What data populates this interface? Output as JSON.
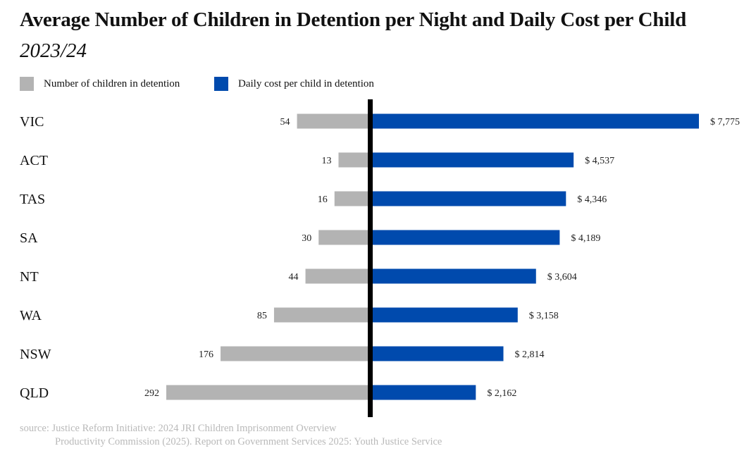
{
  "chart_data": {
    "type": "bar",
    "orientation": "horizontal-diverging",
    "title": "Average Number of Children in Detention per Night and Daily Cost per Child",
    "subtitle": "2023/24",
    "categories": [
      "VIC",
      "ACT",
      "TAS",
      "SA",
      "NT",
      "WA",
      "NSW",
      "QLD"
    ],
    "series": [
      {
        "name": "Number of children in detention",
        "color": "#b3b3b3",
        "side": "left",
        "values": [
          54,
          13,
          16,
          30,
          44,
          85,
          176,
          292
        ],
        "labels": [
          "54",
          "13",
          "16",
          "30",
          "44",
          "85",
          "176",
          "292"
        ]
      },
      {
        "name": "Daily cost per child in detention",
        "color": "#004aad",
        "side": "right",
        "values": [
          7775,
          4537,
          4346,
          4189,
          3604,
          3158,
          2814,
          2162
        ],
        "labels": [
          "$ 7,775",
          "$ 4,537",
          "$ 4,346",
          "$ 4,189",
          "$ 3,604",
          "$ 3,158",
          "$ 2,814",
          "$ 2,162"
        ]
      }
    ],
    "legend_position": "top-left",
    "grid": false,
    "axis_color": "#000000"
  },
  "source": {
    "line1": "source: Justice Reform Initiative: 2024 JRI Children Imprisonment Overview",
    "line2": "Productivity Commission (2025). Report on Government Services 2025: Youth Justice Service"
  }
}
